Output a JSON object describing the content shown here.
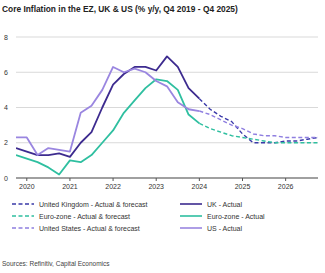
{
  "chart_data": {
    "type": "line",
    "title": "Core Inflation in the EZ, UK & US (% y/y, Q4 2019 - Q4 2025)",
    "source": "Sources: Refinitiv, Capital Economics",
    "x": [
      2019.75,
      2020.0,
      2020.25,
      2020.5,
      2020.75,
      2021.0,
      2021.25,
      2021.5,
      2021.75,
      2022.0,
      2022.25,
      2022.5,
      2022.75,
      2023.0,
      2023.25,
      2023.5,
      2023.75,
      2024.0,
      2024.25,
      2024.5,
      2024.75,
      2025.0,
      2025.25,
      2025.5,
      2025.75,
      2026.0,
      2026.25,
      2026.5,
      2026.75
    ],
    "xlim": [
      2019.75,
      2026.75
    ],
    "xticks": [
      {
        "value": 2020,
        "label": "2020"
      },
      {
        "value": 2021,
        "label": "2021"
      },
      {
        "value": 2022,
        "label": "2022"
      },
      {
        "value": 2023,
        "label": "2023"
      },
      {
        "value": 2024,
        "label": "2024"
      },
      {
        "value": 2025,
        "label": "2025"
      },
      {
        "value": 2026,
        "label": "2026"
      }
    ],
    "ylim": [
      0,
      8
    ],
    "yticks": [
      0,
      2,
      4,
      6,
      8
    ],
    "grid": true,
    "legend": "bottom",
    "series": [
      {
        "name": "United Kingdom - Actual & forecast",
        "color": "#3a3aa8",
        "line_style": "dashed",
        "values": [
          null,
          null,
          null,
          null,
          null,
          null,
          null,
          null,
          null,
          null,
          null,
          null,
          null,
          null,
          null,
          null,
          null,
          4.5,
          3.9,
          3.5,
          3.2,
          2.5,
          2.0,
          2.0,
          2.0,
          2.1,
          2.1,
          2.2,
          2.3
        ]
      },
      {
        "name": "UK - Actual",
        "color": "#3d2b8f",
        "line_style": "solid",
        "values": [
          1.7,
          1.5,
          1.3,
          1.3,
          1.4,
          1.2,
          2.0,
          2.6,
          4.0,
          5.3,
          5.9,
          6.3,
          6.3,
          6.1,
          6.9,
          6.3,
          5.1,
          4.5,
          null,
          null,
          null,
          null,
          null,
          null,
          null,
          null,
          null,
          null,
          null
        ]
      },
      {
        "name": "Euro-zone - Actual & forecast",
        "color": "#2fbfa0",
        "line_style": "dashed",
        "values": [
          null,
          null,
          null,
          null,
          null,
          null,
          null,
          null,
          null,
          null,
          null,
          null,
          null,
          null,
          null,
          null,
          null,
          3.1,
          2.8,
          2.6,
          2.4,
          2.3,
          2.2,
          2.1,
          2.0,
          2.0,
          2.0,
          2.0,
          2.0
        ]
      },
      {
        "name": "Euro-zone - Actual",
        "color": "#2fbfa0",
        "line_style": "solid",
        "values": [
          1.3,
          1.1,
          0.9,
          0.6,
          0.2,
          1.0,
          0.9,
          1.3,
          2.0,
          2.7,
          3.7,
          4.4,
          5.1,
          5.6,
          5.5,
          5.0,
          3.6,
          3.1,
          null,
          null,
          null,
          null,
          null,
          null,
          null,
          null,
          null,
          null,
          null
        ]
      },
      {
        "name": "United States - Actual & forecast",
        "color": "#8f7fe0",
        "line_style": "dashed",
        "values": [
          null,
          null,
          null,
          null,
          null,
          null,
          null,
          null,
          null,
          null,
          null,
          null,
          null,
          null,
          null,
          null,
          null,
          3.8,
          3.6,
          3.3,
          3.0,
          2.8,
          2.5,
          2.4,
          2.4,
          2.3,
          2.3,
          2.3,
          2.3
        ]
      },
      {
        "name": "US - Actual",
        "color": "#9a86e0",
        "line_style": "solid",
        "values": [
          2.3,
          2.3,
          1.3,
          1.7,
          1.6,
          1.5,
          3.7,
          4.1,
          5.0,
          6.3,
          6.0,
          6.2,
          6.0,
          5.5,
          5.2,
          4.3,
          3.9,
          3.8,
          null,
          null,
          null,
          null,
          null,
          null,
          null,
          null,
          null,
          null,
          null
        ]
      }
    ]
  }
}
